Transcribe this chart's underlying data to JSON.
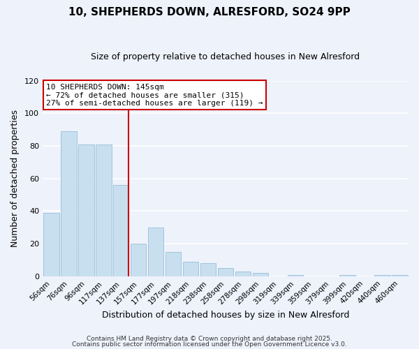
{
  "title": "10, SHEPHERDS DOWN, ALRESFORD, SO24 9PP",
  "subtitle": "Size of property relative to detached houses in New Alresford",
  "xlabel": "Distribution of detached houses by size in New Alresford",
  "ylabel": "Number of detached properties",
  "bar_labels": [
    "56sqm",
    "76sqm",
    "96sqm",
    "117sqm",
    "137sqm",
    "157sqm",
    "177sqm",
    "197sqm",
    "218sqm",
    "238sqm",
    "258sqm",
    "278sqm",
    "298sqm",
    "319sqm",
    "339sqm",
    "359sqm",
    "379sqm",
    "399sqm",
    "420sqm",
    "440sqm",
    "460sqm"
  ],
  "bar_values": [
    39,
    89,
    81,
    81,
    56,
    20,
    30,
    15,
    9,
    8,
    5,
    3,
    2,
    0,
    1,
    0,
    0,
    1,
    0,
    1,
    1
  ],
  "bar_color": "#c8dff0",
  "bar_edge_color": "#a0c4dc",
  "line_color": "#cc0000",
  "line_x_index": 4,
  "ylim": [
    0,
    120
  ],
  "yticks": [
    0,
    20,
    40,
    60,
    80,
    100,
    120
  ],
  "annotation_title": "10 SHEPHERDS DOWN: 145sqm",
  "annotation_line1": "← 72% of detached houses are smaller (315)",
  "annotation_line2": "27% of semi-detached houses are larger (119) →",
  "annotation_box_color": "#ffffff",
  "annotation_box_edge": "#cc0000",
  "footer1": "Contains HM Land Registry data © Crown copyright and database right 2025.",
  "footer2": "Contains public sector information licensed under the Open Government Licence v3.0.",
  "background_color": "#eef2fb",
  "grid_color": "#ffffff"
}
